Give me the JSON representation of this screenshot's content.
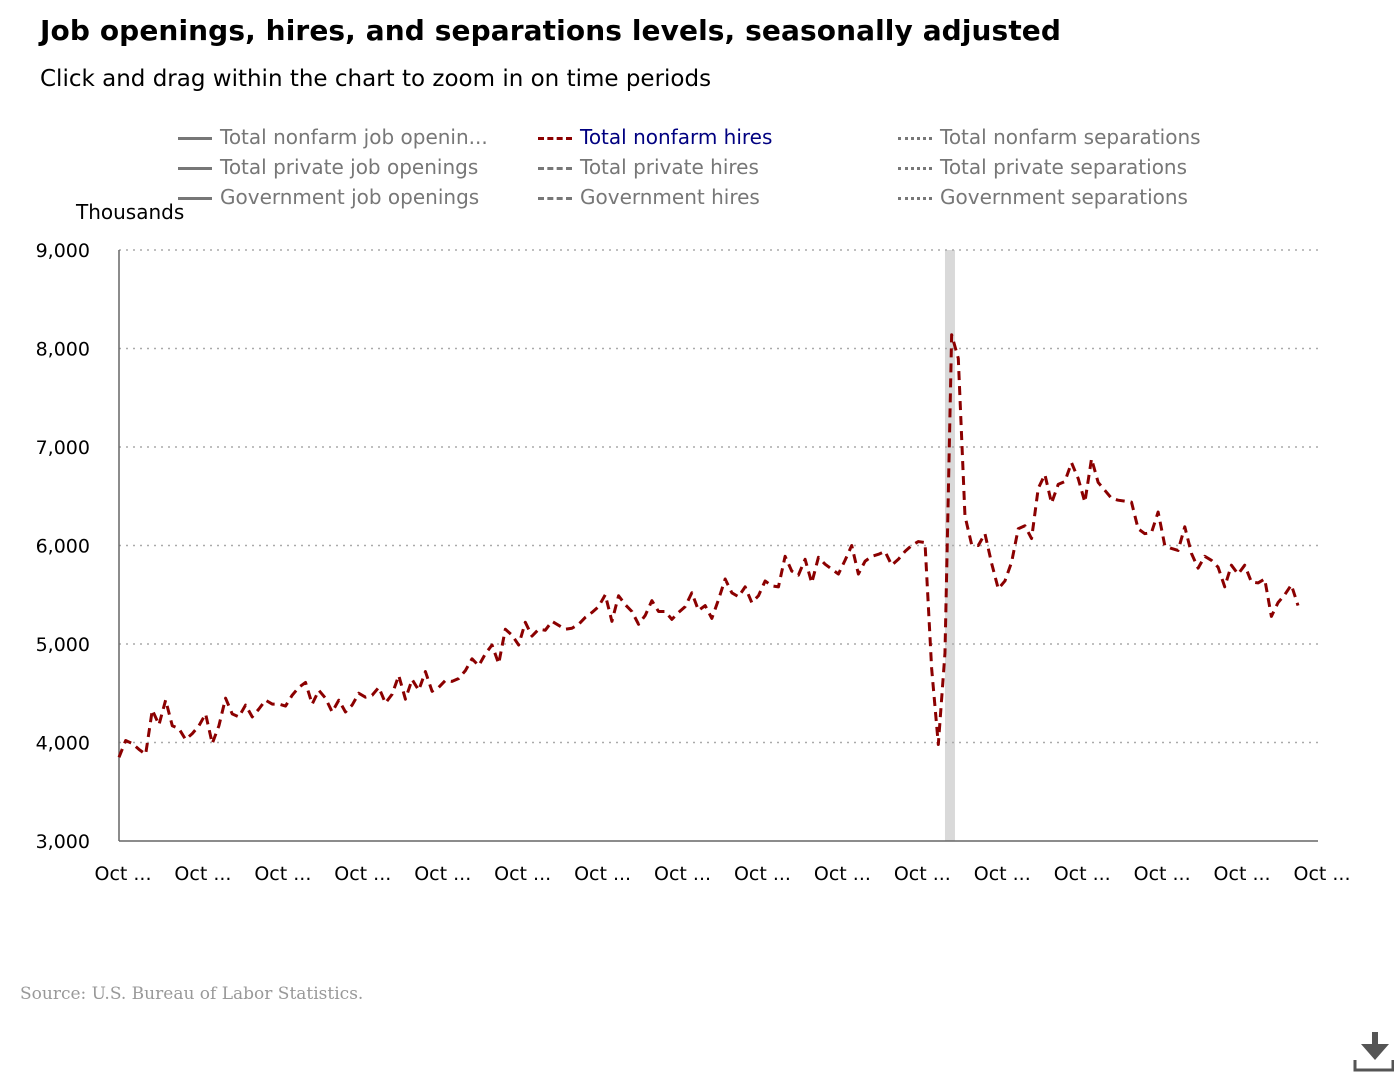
{
  "header": {
    "title": "Job openings, hires, and separations levels, seasonally adjusted",
    "subtitle": "Click and drag within the chart to zoom in on time periods"
  },
  "legend": [
    {
      "label": "Total nonfarm job openin...",
      "style": "solid",
      "active": false
    },
    {
      "label": "Total nonfarm hires",
      "style": "dashed",
      "active": true
    },
    {
      "label": "Total nonfarm separations",
      "style": "dotted",
      "active": false
    },
    {
      "label": "Total private job openings",
      "style": "solid",
      "active": false
    },
    {
      "label": "Total private hires",
      "style": "dashed",
      "active": false
    },
    {
      "label": "Total private separations",
      "style": "dotted",
      "active": false
    },
    {
      "label": "Government job openings",
      "style": "solid",
      "active": false
    },
    {
      "label": "Government hires",
      "style": "dashed",
      "active": false
    },
    {
      "label": "Government separations",
      "style": "dotted",
      "active": false
    }
  ],
  "colors": {
    "active_series": "#8b0000",
    "inactive_legend": "#777777",
    "active_legend_text": "#000080",
    "grid": "#aaaaaa",
    "recession_band": "#d9d9d9"
  },
  "footer": {
    "source": "Source: U.S. Bureau of Labor Statistics."
  },
  "icons": {
    "download": "download-icon"
  },
  "chart_data": {
    "type": "line",
    "ylabel": "Thousands",
    "ylim": [
      3000,
      9000
    ],
    "yticks": [
      "3,000",
      "4,000",
      "5,000",
      "6,000",
      "7,000",
      "8,000",
      "9,000"
    ],
    "ytick_values": [
      3000,
      4000,
      5000,
      6000,
      7000,
      8000,
      9000
    ],
    "xlim": [
      0,
      180
    ],
    "xticks": [
      "Oct ...",
      "Oct ...",
      "Oct ...",
      "Oct ...",
      "Oct ...",
      "Oct ...",
      "Oct ...",
      "Oct ...",
      "Oct ...",
      "Oct ...",
      "Oct ...",
      "Oct ...",
      "Oct ...",
      "Oct ...",
      "Oct ...",
      "Oct ..."
    ],
    "xtick_values": [
      0,
      12,
      24,
      36,
      48,
      60,
      72,
      84,
      96,
      108,
      120,
      132,
      144,
      156,
      168,
      180
    ],
    "grid": true,
    "recession_band": [
      124,
      125.5
    ],
    "series": [
      {
        "name": "Total nonfarm hires",
        "style": "dashed",
        "values": [
          3850,
          4020,
          3990,
          3930,
          3880,
          4330,
          4180,
          4430,
          4170,
          4140,
          4030,
          4090,
          4170,
          4290,
          3990,
          4170,
          4450,
          4290,
          4260,
          4380,
          4260,
          4340,
          4430,
          4390,
          4390,
          4370,
          4480,
          4560,
          4610,
          4390,
          4530,
          4450,
          4310,
          4430,
          4310,
          4380,
          4500,
          4460,
          4480,
          4560,
          4400,
          4490,
          4680,
          4440,
          4640,
          4530,
          4720,
          4520,
          4560,
          4630,
          4620,
          4650,
          4730,
          4850,
          4780,
          4900,
          4990,
          4800,
          5150,
          5090,
          4990,
          5220,
          5080,
          5150,
          5140,
          5230,
          5190,
          5150,
          5160,
          5200,
          5270,
          5320,
          5380,
          5500,
          5230,
          5490,
          5400,
          5330,
          5200,
          5290,
          5440,
          5330,
          5330,
          5250,
          5320,
          5380,
          5520,
          5340,
          5390,
          5260,
          5450,
          5660,
          5520,
          5480,
          5580,
          5420,
          5490,
          5640,
          5590,
          5580,
          5890,
          5740,
          5700,
          5860,
          5620,
          5880,
          5810,
          5760,
          5710,
          5850,
          6000,
          5710,
          5840,
          5890,
          5910,
          5940,
          5800,
          5860,
          5940,
          6000,
          6040,
          6030,
          4750,
          3980,
          4910,
          8140,
          7900,
          6300,
          6010,
          6000,
          6120,
          5820,
          5560,
          5640,
          5830,
          6170,
          6200,
          6070,
          6580,
          6720,
          6430,
          6620,
          6650,
          6840,
          6680,
          6440,
          6880,
          6640,
          6560,
          6480,
          6460,
          6450,
          6440,
          6170,
          6120,
          6130,
          6340,
          6000,
          5970,
          5950,
          6190,
          5920,
          5770,
          5890,
          5850,
          5780,
          5580,
          5800,
          5710,
          5800,
          5630,
          5620,
          5660,
          5280,
          5420,
          5500,
          5600,
          5390
        ]
      }
    ]
  }
}
